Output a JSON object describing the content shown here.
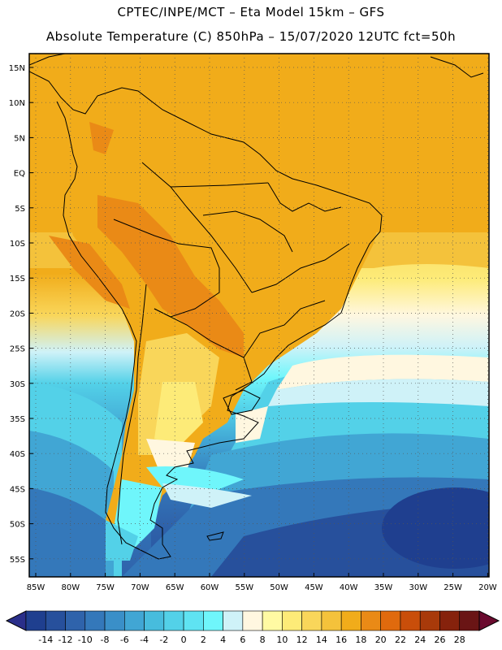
{
  "header": {
    "line1": "CPTEC/INPE/MCT –  Eta Model 15km – GFS",
    "line2": "Absolute Temperature (C) 850hPa – 15/07/2020 12UTC fct=50h"
  },
  "map": {
    "lat_ticks": [
      "15N",
      "10N",
      "5N",
      "EQ",
      "5S",
      "10S",
      "15S",
      "20S",
      "25S",
      "30S",
      "35S",
      "40S",
      "45S",
      "50S",
      "55S"
    ],
    "lon_ticks": [
      "85W",
      "80W",
      "75W",
      "70W",
      "65W",
      "60W",
      "55W",
      "50W",
      "45W",
      "40W",
      "35W",
      "30W",
      "25W",
      "20W"
    ]
  },
  "colorbar": {
    "labels": [
      "-14",
      "-12",
      "-10",
      "-8",
      "-6",
      "-4",
      "-2",
      "0",
      "2",
      "4",
      "6",
      "8",
      "10",
      "12",
      "14",
      "16",
      "18",
      "20",
      "22",
      "24",
      "26",
      "28"
    ],
    "colors": [
      "#1f3f8f",
      "#27509c",
      "#2f63ab",
      "#3478ba",
      "#3a8fc8",
      "#41a6d4",
      "#47bcdd",
      "#53d1e8",
      "#5fe3f2",
      "#6ff6fb",
      "#cff2f8",
      "#fff7e0",
      "#fffaa3",
      "#fdeb78",
      "#f9d65a",
      "#f4c23b",
      "#f1ac1a",
      "#ea8a16",
      "#e06a0d",
      "#c94e0a",
      "#a83a0a",
      "#86220c",
      "#6a1515"
    ]
  }
}
